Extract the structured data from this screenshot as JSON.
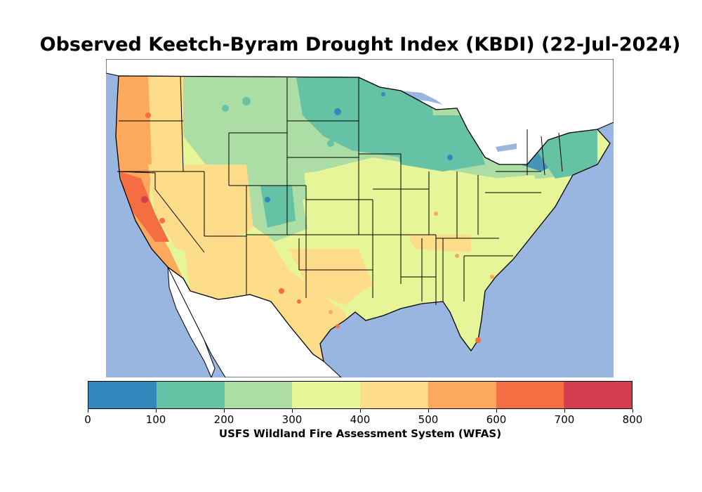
{
  "title": "Observed Keetch-Byram Drought Index (KBDI) (22-Jul-2024)",
  "map": {
    "region": "contiguous-united-states",
    "ocean_color": "#98b6e0",
    "land_color": "#ffffff",
    "border_color": "#000000",
    "regions": [
      {
        "name": "pacific-northwest",
        "kbdi": 450,
        "color": "#fddd8a"
      },
      {
        "name": "oregon-coast",
        "kbdi": 550,
        "color": "#fca95e"
      },
      {
        "name": "california",
        "kbdi": 600,
        "color": "#fca95e"
      },
      {
        "name": "central-valley-ca",
        "kbdi": 700,
        "color": "#f46d43"
      },
      {
        "name": "great-basin",
        "kbdi": 450,
        "color": "#fddd8a"
      },
      {
        "name": "northern-rockies",
        "kbdi": 250,
        "color": "#abdda4"
      },
      {
        "name": "northern-plains",
        "kbdi": 200,
        "color": "#66c2a5"
      },
      {
        "name": "central-rockies",
        "kbdi": 250,
        "color": "#abdda4"
      },
      {
        "name": "southwest",
        "kbdi": 450,
        "color": "#fddd8a"
      },
      {
        "name": "texas",
        "kbdi": 450,
        "color": "#fddd8a"
      },
      {
        "name": "central-plains",
        "kbdi": 300,
        "color": "#abdda4"
      },
      {
        "name": "upper-midwest",
        "kbdi": 150,
        "color": "#66c2a5"
      },
      {
        "name": "ohio-valley",
        "kbdi": 400,
        "color": "#e6f598"
      },
      {
        "name": "southeast",
        "kbdi": 400,
        "color": "#e6f598"
      },
      {
        "name": "northeast",
        "kbdi": 200,
        "color": "#66c2a5"
      }
    ]
  },
  "colorbar": {
    "bins": [
      {
        "min": 0,
        "max": 100,
        "color": "#3288bd"
      },
      {
        "min": 100,
        "max": 200,
        "color": "#66c2a5"
      },
      {
        "min": 200,
        "max": 300,
        "color": "#abdda4"
      },
      {
        "min": 300,
        "max": 400,
        "color": "#e6f598"
      },
      {
        "min": 400,
        "max": 500,
        "color": "#fddd8a"
      },
      {
        "min": 500,
        "max": 600,
        "color": "#fca95e"
      },
      {
        "min": 600,
        "max": 700,
        "color": "#f46d43"
      },
      {
        "min": 700,
        "max": 800,
        "color": "#d53e4f"
      }
    ],
    "ticks": [
      "0",
      "100",
      "200",
      "300",
      "400",
      "500",
      "600",
      "700",
      "800"
    ],
    "label": "USFS Wildland Fire Assessment System (WFAS)"
  }
}
